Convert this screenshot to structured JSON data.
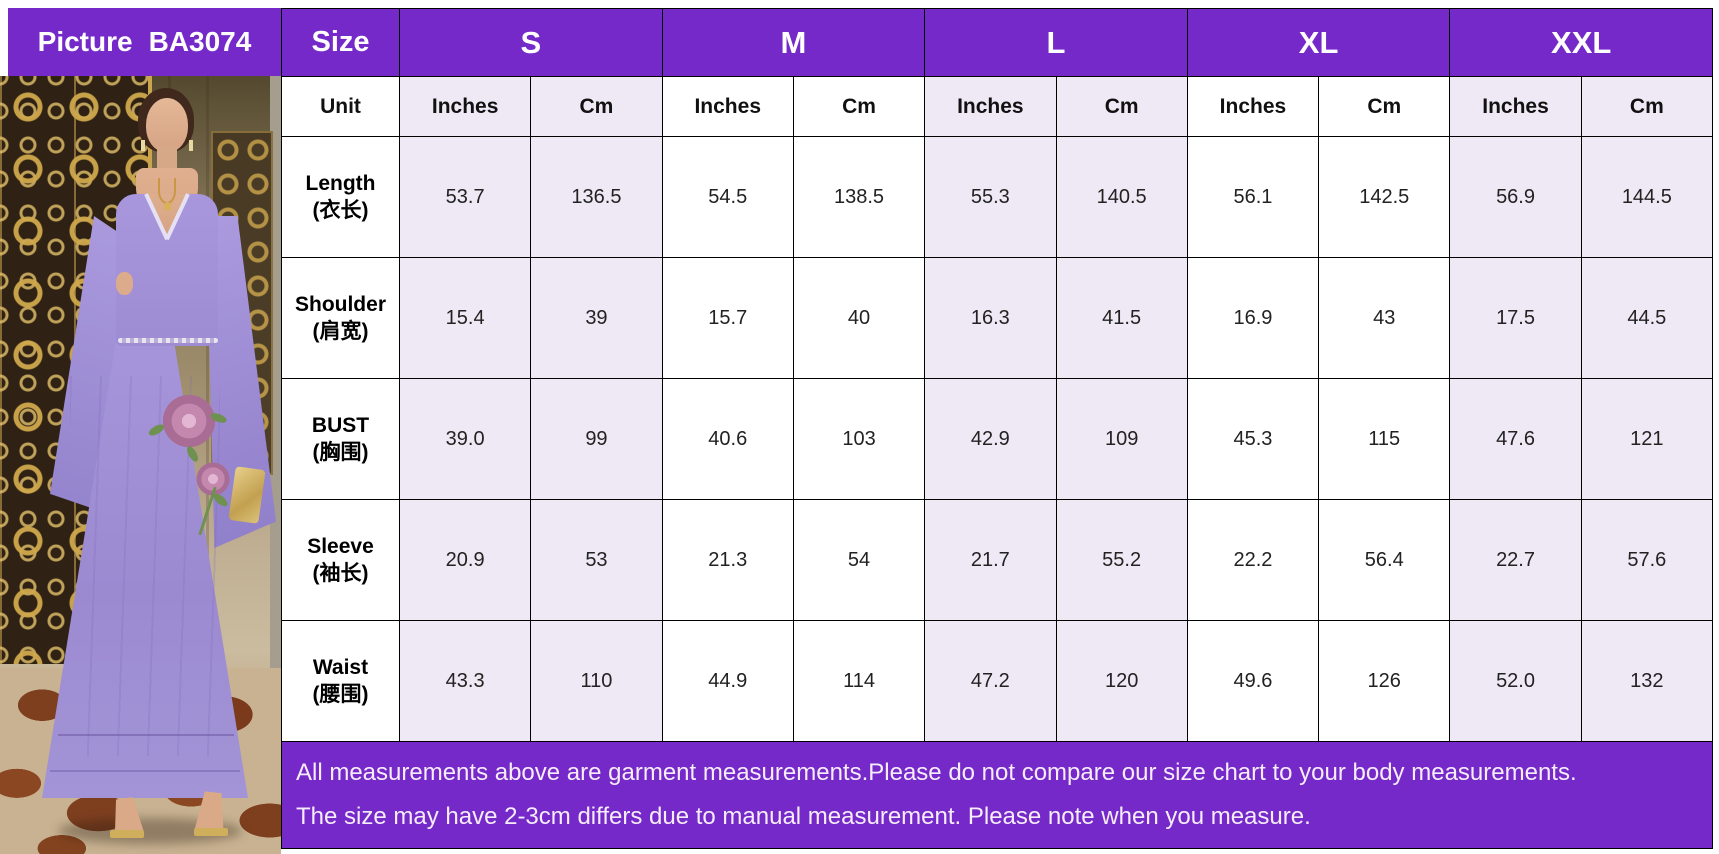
{
  "header": {
    "picture_label": "Picture",
    "picture_code": "BA3074",
    "size_label": "Size",
    "sizes": [
      "S",
      "M",
      "L",
      "XL",
      "XXL"
    ]
  },
  "unit_row": {
    "label": "Unit",
    "units": [
      "Inches",
      "Cm"
    ]
  },
  "rows": [
    {
      "label_en": "Length",
      "label_zh": "(衣长)",
      "values": [
        "53.7",
        "136.5",
        "54.5",
        "138.5",
        "55.3",
        "140.5",
        "56.1",
        "142.5",
        "56.9",
        "144.5"
      ]
    },
    {
      "label_en": "Shoulder",
      "label_zh": "(肩宽)",
      "values": [
        "15.4",
        "39",
        "15.7",
        "40",
        "16.3",
        "41.5",
        "16.9",
        "43",
        "17.5",
        "44.5"
      ]
    },
    {
      "label_en": "BUST",
      "label_zh": "(胸围)",
      "values": [
        "39.0",
        "99",
        "40.6",
        "103",
        "42.9",
        "109",
        "45.3",
        "115",
        "47.6",
        "121"
      ]
    },
    {
      "label_en": "Sleeve",
      "label_zh": "(袖长)",
      "values": [
        "20.9",
        "53",
        "21.3",
        "54",
        "21.7",
        "55.2",
        "22.2",
        "56.4",
        "22.7",
        "57.6"
      ]
    },
    {
      "label_en": "Waist",
      "label_zh": "(腰围)",
      "values": [
        "43.3",
        "110",
        "44.9",
        "114",
        "47.2",
        "120",
        "49.6",
        "126",
        "52.0",
        "132"
      ]
    }
  ],
  "footer": {
    "line1": "All measurements above are garment measurements.Please do not compare our size chart to your body measurements.",
    "line2": "The size may have 2-3cm differs due to manual measurement. Please note when you measure."
  },
  "colors": {
    "purple": "#7529C8",
    "lavender_cell": "#EFE9F6",
    "white_cell": "#FFFFFF",
    "border": "#000000",
    "dress_lavender": "#A695DA"
  }
}
